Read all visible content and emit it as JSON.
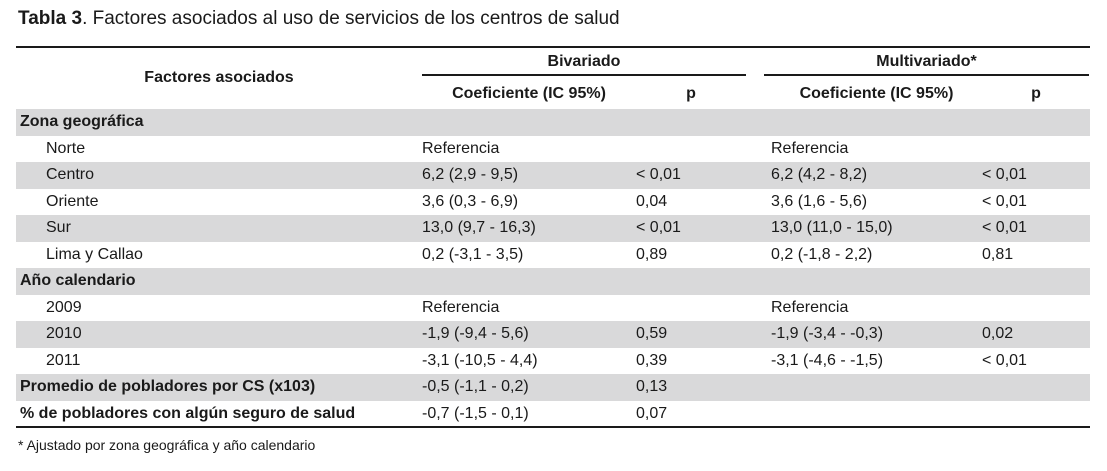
{
  "caption": {
    "label": "Tabla 3",
    "text": ". Factores asociados al uso de servicios de los centros de salud"
  },
  "header": {
    "factor": "Factores asociados",
    "groups": {
      "bivariate": "Bivariado",
      "multivariate": "Multivariado*"
    },
    "columns": {
      "b_coef": "Coeficiente (IC 95%)",
      "b_p": "p",
      "m_coef": "Coeficiente (IC 95%)",
      "m_p": "p"
    }
  },
  "rows": [
    {
      "factor": "Zona geográfica",
      "type": "section",
      "b_coef": "",
      "b_p": "",
      "m_coef": "",
      "m_p": ""
    },
    {
      "factor": "Norte",
      "type": "item",
      "b_coef": "Referencia",
      "b_p": "",
      "m_coef": "Referencia",
      "m_p": ""
    },
    {
      "factor": "Centro",
      "type": "item",
      "b_coef": "6,2 (2,9 - 9,5)",
      "b_p": "< 0,01",
      "m_coef": "6,2 (4,2 - 8,2)",
      "m_p": "< 0,01"
    },
    {
      "factor": "Oriente",
      "type": "item",
      "b_coef": "3,6 (0,3 - 6,9)",
      "b_p": "0,04",
      "m_coef": "3,6 (1,6 - 5,6)",
      "m_p": "< 0,01"
    },
    {
      "factor": "Sur",
      "type": "item",
      "b_coef": "13,0 (9,7 - 16,3)",
      "b_p": "< 0,01",
      "m_coef": "13,0 (11,0 - 15,0)",
      "m_p": "< 0,01"
    },
    {
      "factor": "Lima y Callao",
      "type": "item",
      "b_coef": "0,2 (-3,1 - 3,5)",
      "b_p": "0,89",
      "m_coef": "0,2 (-1,8 - 2,2)",
      "m_p": "0,81"
    },
    {
      "factor": "Año calendario",
      "type": "section",
      "b_coef": "",
      "b_p": "",
      "m_coef": "",
      "m_p": ""
    },
    {
      "factor": "2009",
      "type": "item",
      "b_coef": "Referencia",
      "b_p": "",
      "m_coef": "Referencia",
      "m_p": ""
    },
    {
      "factor": "2010",
      "type": "item",
      "b_coef": "-1,9 (-9,4 - 5,6)",
      "b_p": "0,59",
      "m_coef": "-1,9 (-3,4 - -0,3)",
      "m_p": "0,02"
    },
    {
      "factor": "2011",
      "type": "item",
      "b_coef": "-3,1 (-10,5 - 4,4)",
      "b_p": "0,39",
      "m_coef": "-3,1 (-4,6 - -1,5)",
      "m_p": "< 0,01"
    },
    {
      "factor": "Promedio de pobladores por CS (x103)",
      "type": "section",
      "b_coef": "-0,5 (-1,1 - 0,2)",
      "b_p": "0,13",
      "m_coef": "",
      "m_p": ""
    },
    {
      "factor": "% de pobladores con algún seguro de salud",
      "type": "section",
      "b_coef": "-0,7 (-1,5 - 0,1)",
      "b_p": "0,07",
      "m_coef": "",
      "m_p": ""
    }
  ],
  "footnote": "* Ajustado por zona geográfica y año calendario",
  "colors": {
    "shade": "#d9d9da",
    "text": "#1a1a1a"
  }
}
